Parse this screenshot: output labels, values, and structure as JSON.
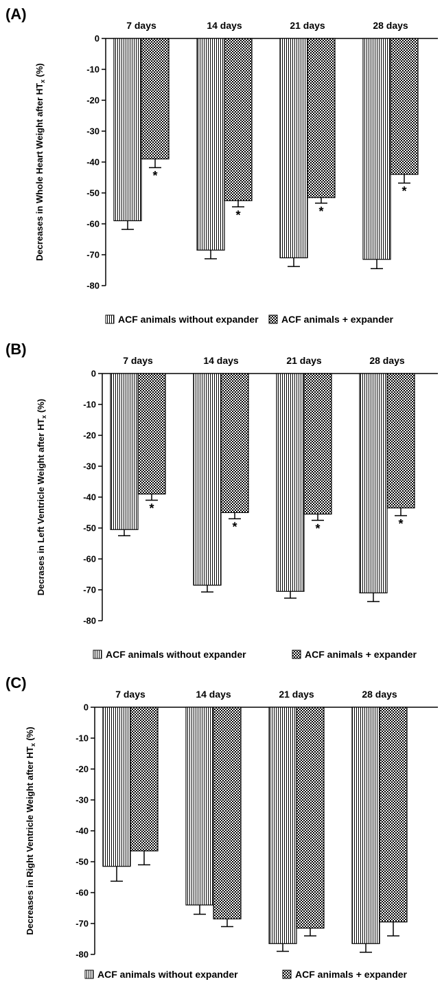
{
  "chart_data": [
    {
      "type": "bar",
      "panel_label": "(A)",
      "ylabel": "Decreases in Whole Heart Weight after HT",
      "ylabel_sub": "x",
      "ylabel_suffix": " (%)",
      "categories": [
        "7 days",
        "14 days",
        "21 days",
        "28 days"
      ],
      "ylim": [
        -80,
        0
      ],
      "yticks": [
        0,
        -10,
        -20,
        -30,
        -40,
        -50,
        -60,
        -70,
        -80
      ],
      "significance_marker": "*",
      "series": [
        {
          "name": "ACF animals without expander",
          "pattern": "vertical-lines",
          "values": [
            -59,
            -68.5,
            -71,
            -71.5
          ],
          "errors": [
            2.8,
            2.8,
            2.8,
            3.0
          ],
          "significant": [
            false,
            false,
            false,
            false
          ]
        },
        {
          "name": "ACF animals + expander",
          "pattern": "checkered",
          "values": [
            -39,
            -52.5,
            -51.5,
            -44
          ],
          "errors": [
            2.8,
            2.0,
            1.8,
            2.8
          ],
          "significant": [
            true,
            true,
            true,
            true
          ]
        }
      ]
    },
    {
      "type": "bar",
      "panel_label": "(B)",
      "ylabel": "Decrases in Left Ventricle Weight after HT",
      "ylabel_sub": "x",
      "ylabel_suffix": " (%)",
      "categories": [
        "7 days",
        "14 days",
        "21 days",
        "28 days"
      ],
      "ylim": [
        -80,
        0
      ],
      "yticks": [
        0,
        -10,
        -20,
        -30,
        -40,
        -50,
        -60,
        -70,
        -80
      ],
      "significance_marker": "*",
      "series": [
        {
          "name": "ACF animals without expander",
          "pattern": "vertical-lines",
          "values": [
            -50.5,
            -68.5,
            -70.5,
            -71
          ],
          "errors": [
            2.0,
            2.2,
            2.2,
            2.8
          ],
          "significant": [
            false,
            false,
            false,
            false
          ]
        },
        {
          "name": "ACF animals + expander",
          "pattern": "checkered",
          "values": [
            -39,
            -45,
            -45.5,
            -43.5
          ],
          "errors": [
            2.0,
            2.0,
            2.0,
            2.5
          ],
          "significant": [
            true,
            true,
            true,
            true
          ]
        }
      ]
    },
    {
      "type": "bar",
      "panel_label": "(C)",
      "ylabel": "Decreases in Right Ventricle Weight after HT",
      "ylabel_sub": "x",
      "ylabel_suffix": " (%)",
      "categories": [
        "7 days",
        "14 days",
        "21 days",
        "28 days"
      ],
      "ylim": [
        -80,
        0
      ],
      "yticks": [
        0,
        -10,
        -20,
        -30,
        -40,
        -50,
        -60,
        -70,
        -80
      ],
      "significance_marker": "*",
      "series": [
        {
          "name": "ACF animals without expander",
          "pattern": "vertical-lines",
          "values": [
            -51.5,
            -64,
            -76.5,
            -76.5
          ],
          "errors": [
            4.8,
            3.0,
            2.5,
            2.8
          ],
          "significant": [
            false,
            false,
            false,
            false
          ]
        },
        {
          "name": "ACF animals + expander",
          "pattern": "checkered",
          "values": [
            -46.5,
            -68.5,
            -71.5,
            -69.5
          ],
          "errors": [
            4.5,
            2.5,
            2.5,
            4.5
          ],
          "significant": [
            false,
            false,
            false,
            false
          ]
        }
      ]
    }
  ]
}
